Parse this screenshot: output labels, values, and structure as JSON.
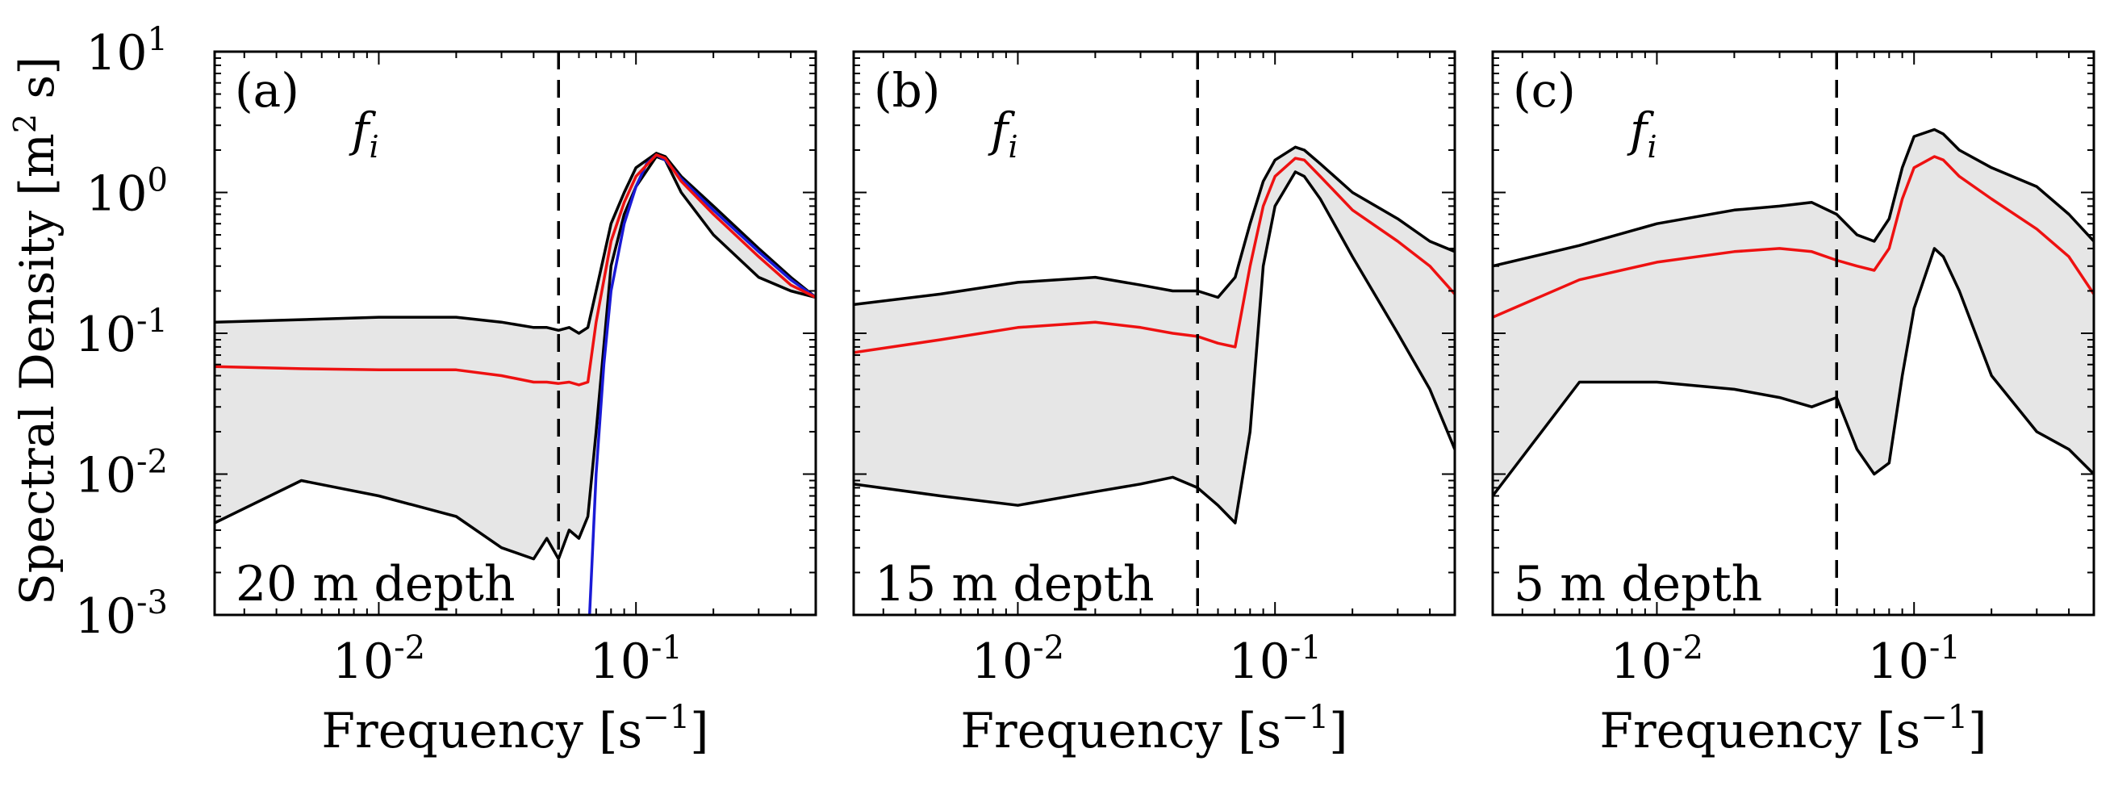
{
  "chart_data": {
    "type": "line",
    "scale": "log-log",
    "y_label": "Spectral Density [m² s]",
    "y_label_parts": {
      "main": "Spectral Density [m",
      "sup": "2",
      "tail": " s]"
    },
    "x_label_parts": {
      "main": "Frequency [s",
      "sup": "−1",
      "tail": "]"
    },
    "xlim": [
      0.0023,
      0.5
    ],
    "ylim": [
      0.001,
      10
    ],
    "x_ticks": [
      {
        "base": "10",
        "exp": "-2",
        "value": 0.01
      },
      {
        "base": "10",
        "exp": "-1",
        "value": 0.1
      }
    ],
    "y_ticks": [
      {
        "base": "10",
        "exp": "-3",
        "value": 0.001
      },
      {
        "base": "10",
        "exp": "-2",
        "value": 0.01
      },
      {
        "base": "10",
        "exp": "-1",
        "value": 0.1
      },
      {
        "base": "10",
        "exp": "0",
        "value": 1
      },
      {
        "base": "10",
        "exp": "1",
        "value": 10
      }
    ],
    "vline_x": 0.05,
    "vline_label": {
      "main": "f",
      "sub": "i"
    },
    "colors": {
      "median": "#ee1111",
      "bounds": "#000000",
      "fill": "#e6e6e6",
      "model": "#1a1ad6"
    },
    "panels": [
      {
        "label": "(a)",
        "depth_label": "20 m depth",
        "x": [
          0.0023,
          0.005,
          0.01,
          0.02,
          0.03,
          0.04,
          0.045,
          0.05,
          0.055,
          0.06,
          0.065,
          0.07,
          0.08,
          0.09,
          0.1,
          0.12,
          0.13,
          0.15,
          0.2,
          0.3,
          0.4,
          0.5
        ],
        "upper": [
          0.12,
          0.125,
          0.13,
          0.13,
          0.12,
          0.11,
          0.11,
          0.105,
          0.11,
          0.1,
          0.11,
          0.2,
          0.6,
          1.0,
          1.5,
          1.9,
          1.8,
          1.3,
          0.8,
          0.4,
          0.25,
          0.18
        ],
        "median": [
          0.058,
          0.056,
          0.055,
          0.055,
          0.05,
          0.045,
          0.045,
          0.044,
          0.045,
          0.043,
          0.045,
          0.12,
          0.45,
          0.85,
          1.3,
          1.85,
          1.75,
          1.2,
          0.7,
          0.35,
          0.22,
          0.18
        ],
        "lower": [
          0.0045,
          0.009,
          0.007,
          0.005,
          0.003,
          0.0025,
          0.0035,
          0.0025,
          0.004,
          0.0035,
          0.005,
          0.02,
          0.3,
          0.7,
          1.1,
          1.8,
          1.7,
          1.0,
          0.5,
          0.25,
          0.2,
          0.18
        ],
        "model": {
          "x": [
            0.066,
            0.07,
            0.075,
            0.08,
            0.09,
            0.1,
            0.11,
            0.12,
            0.13,
            0.15,
            0.2,
            0.3,
            0.4,
            0.5
          ],
          "y": [
            0.001,
            0.01,
            0.06,
            0.2,
            0.6,
            1.1,
            1.6,
            1.85,
            1.7,
            1.25,
            0.75,
            0.38,
            0.24,
            0.18
          ]
        }
      },
      {
        "label": "(b)",
        "depth_label": "15 m depth",
        "x": [
          0.0023,
          0.005,
          0.01,
          0.02,
          0.03,
          0.04,
          0.05,
          0.06,
          0.07,
          0.08,
          0.09,
          0.1,
          0.12,
          0.13,
          0.15,
          0.2,
          0.3,
          0.4,
          0.5
        ],
        "upper": [
          0.16,
          0.19,
          0.23,
          0.25,
          0.22,
          0.2,
          0.2,
          0.18,
          0.25,
          0.6,
          1.2,
          1.7,
          2.1,
          2.0,
          1.6,
          1.0,
          0.65,
          0.45,
          0.38
        ],
        "median": [
          0.073,
          0.09,
          0.11,
          0.12,
          0.11,
          0.1,
          0.095,
          0.085,
          0.08,
          0.3,
          0.8,
          1.3,
          1.75,
          1.7,
          1.3,
          0.75,
          0.45,
          0.3,
          0.19
        ],
        "lower": [
          0.0085,
          0.007,
          0.006,
          0.0075,
          0.0085,
          0.0095,
          0.008,
          0.006,
          0.0045,
          0.02,
          0.3,
          0.8,
          1.4,
          1.3,
          0.9,
          0.35,
          0.1,
          0.04,
          0.015
        ]
      },
      {
        "label": "(c)",
        "depth_label": "5 m depth",
        "x": [
          0.0023,
          0.005,
          0.01,
          0.02,
          0.03,
          0.04,
          0.05,
          0.06,
          0.07,
          0.08,
          0.09,
          0.1,
          0.12,
          0.13,
          0.15,
          0.2,
          0.3,
          0.4,
          0.5
        ],
        "upper": [
          0.3,
          0.42,
          0.6,
          0.75,
          0.8,
          0.85,
          0.7,
          0.5,
          0.45,
          0.65,
          1.5,
          2.5,
          2.8,
          2.6,
          2.0,
          1.5,
          1.1,
          0.7,
          0.45
        ],
        "median": [
          0.13,
          0.24,
          0.32,
          0.38,
          0.4,
          0.38,
          0.33,
          0.3,
          0.28,
          0.4,
          0.9,
          1.5,
          1.8,
          1.7,
          1.3,
          0.9,
          0.55,
          0.35,
          0.19
        ],
        "lower": [
          0.007,
          0.045,
          0.045,
          0.04,
          0.035,
          0.03,
          0.035,
          0.015,
          0.01,
          0.012,
          0.05,
          0.15,
          0.4,
          0.35,
          0.2,
          0.05,
          0.02,
          0.015,
          0.01
        ]
      }
    ]
  }
}
